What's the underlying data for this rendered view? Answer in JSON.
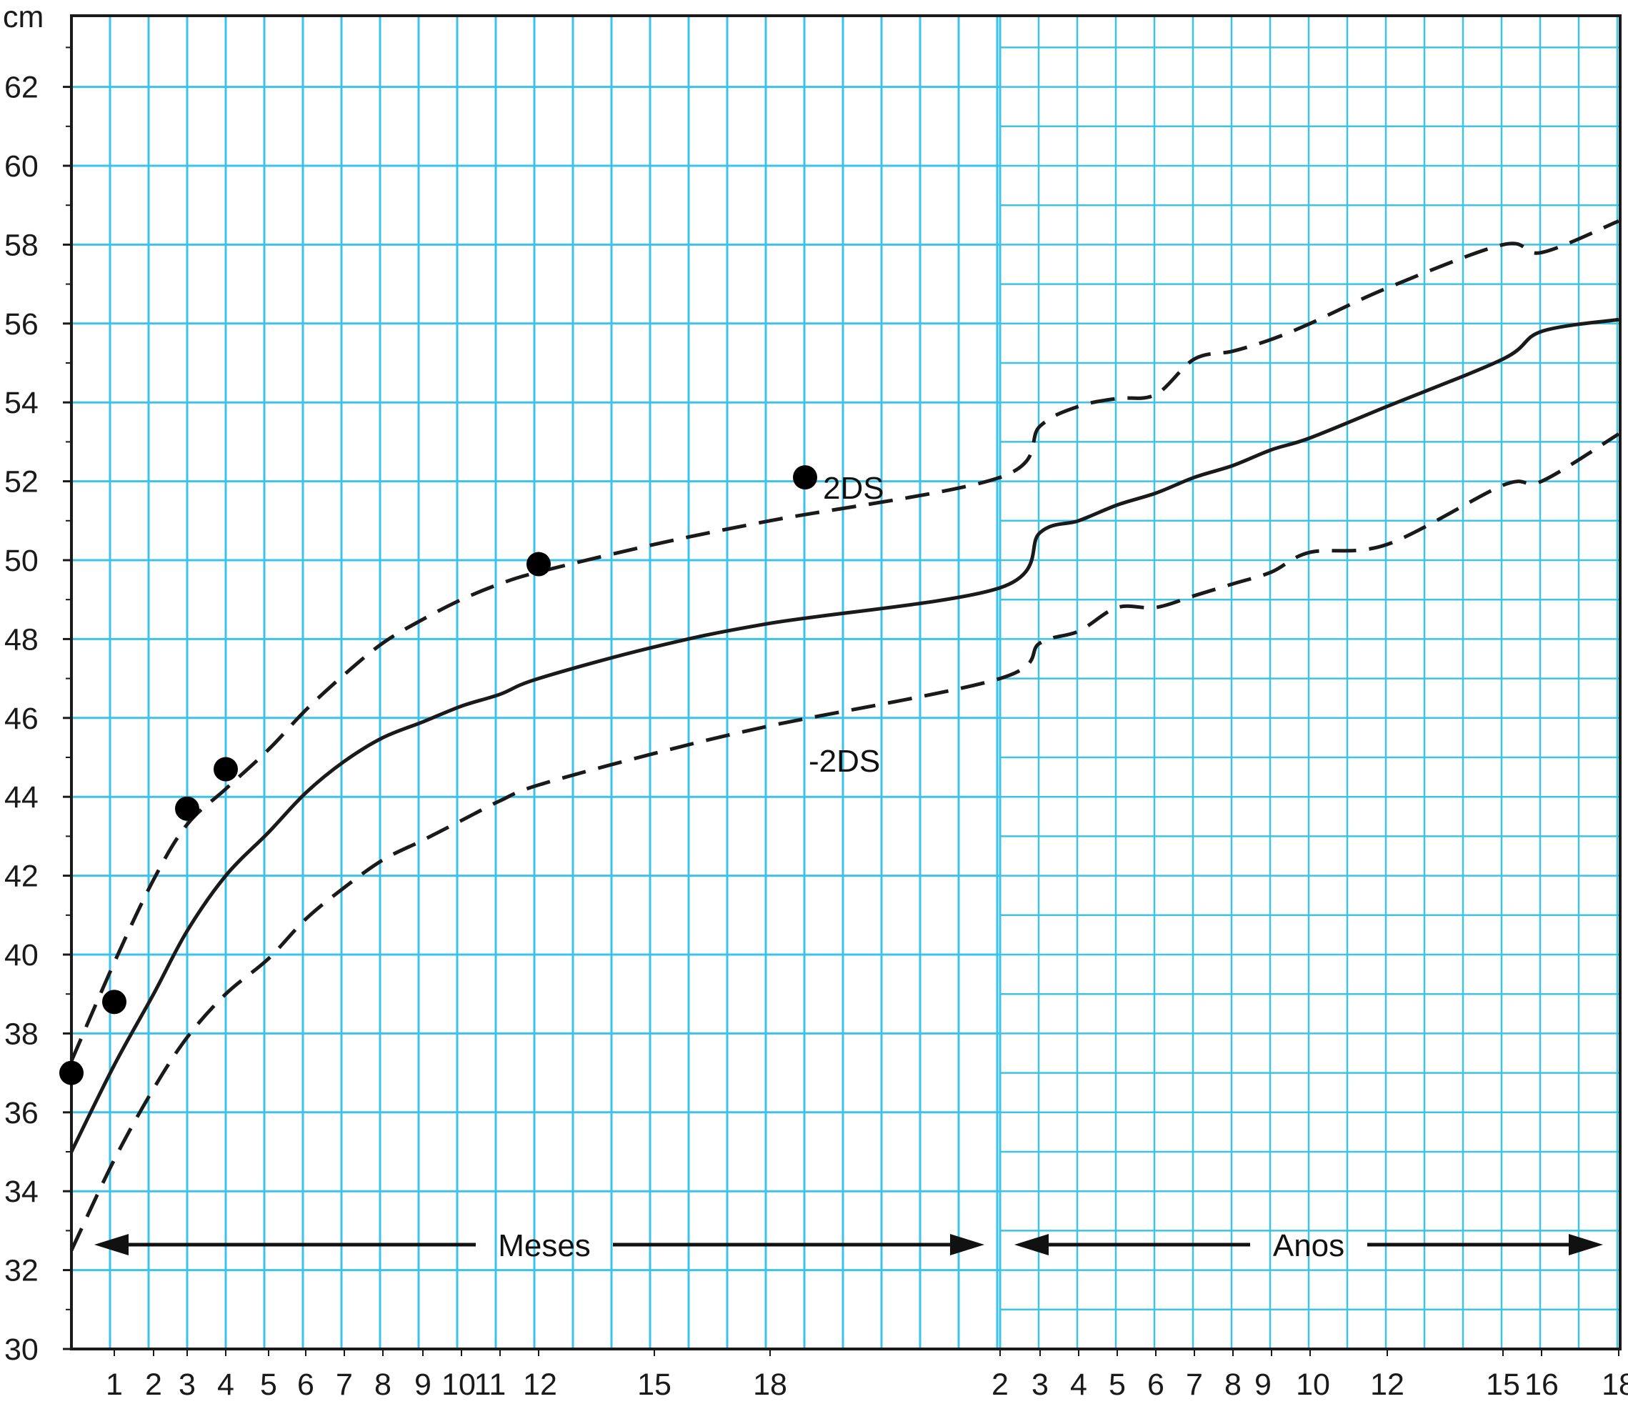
{
  "chart_data": {
    "type": "line",
    "ylabel": "cm",
    "ylim": [
      30,
      64
    ],
    "yticks": [
      30,
      32,
      34,
      36,
      38,
      40,
      42,
      44,
      46,
      48,
      50,
      52,
      54,
      56,
      58,
      60,
      62
    ],
    "x_sections": [
      {
        "label": "Meses",
        "ticks": [
          "1",
          "2",
          "3",
          "4",
          "5",
          "6",
          "7",
          "8",
          "9",
          "10",
          "11",
          "12",
          "15",
          "18"
        ]
      },
      {
        "label": "Anos",
        "ticks": [
          "2",
          "3",
          "4",
          "5",
          "6",
          "7",
          "8",
          "9",
          "10",
          "12",
          "15",
          "16",
          "18"
        ]
      }
    ],
    "series": [
      {
        "name": "2DS",
        "style": "dashed",
        "points": [
          [
            "0m",
            37.3
          ],
          [
            "1m",
            39.8
          ],
          [
            "2m",
            41.9
          ],
          [
            "3m",
            43.3
          ],
          [
            "4m",
            44.2
          ],
          [
            "5m",
            45.2
          ],
          [
            "6m",
            46.2
          ],
          [
            "7m",
            47.1
          ],
          [
            "8m",
            47.9
          ],
          [
            "9m",
            48.5
          ],
          [
            "10m",
            49.0
          ],
          [
            "11m",
            49.4
          ],
          [
            "12m",
            49.7
          ],
          [
            "15m",
            50.4
          ],
          [
            "18m",
            51.0
          ],
          [
            "24m",
            52.1
          ],
          [
            "3a",
            53.4
          ],
          [
            "4a",
            53.9
          ],
          [
            "5a",
            54.1
          ],
          [
            "6a",
            54.2
          ],
          [
            "7a",
            55.1
          ],
          [
            "8a",
            55.3
          ],
          [
            "9a",
            55.6
          ],
          [
            "10a",
            56.0
          ],
          [
            "12a",
            56.9
          ],
          [
            "15a",
            58.0
          ],
          [
            "16a",
            57.8
          ],
          [
            "18a",
            58.6
          ]
        ]
      },
      {
        "name": "",
        "style": "solid",
        "points": [
          [
            "0m",
            35.0
          ],
          [
            "1m",
            37.2
          ],
          [
            "2m",
            39.0
          ],
          [
            "3m",
            40.6
          ],
          [
            "4m",
            42.0
          ],
          [
            "5m",
            43.1
          ],
          [
            "6m",
            44.1
          ],
          [
            "7m",
            44.9
          ],
          [
            "8m",
            45.5
          ],
          [
            "9m",
            45.9
          ],
          [
            "10m",
            46.3
          ],
          [
            "11m",
            46.6
          ],
          [
            "12m",
            47.0
          ],
          [
            "15m",
            47.8
          ],
          [
            "18m",
            48.4
          ],
          [
            "24m",
            49.3
          ],
          [
            "3a",
            50.7
          ],
          [
            "4a",
            51.0
          ],
          [
            "5a",
            51.4
          ],
          [
            "6a",
            51.7
          ],
          [
            "7a",
            52.1
          ],
          [
            "8a",
            52.4
          ],
          [
            "9a",
            52.8
          ],
          [
            "10a",
            53.1
          ],
          [
            "12a",
            53.9
          ],
          [
            "15a",
            55.1
          ],
          [
            "16a",
            55.8
          ],
          [
            "18a",
            56.1
          ]
        ]
      },
      {
        "name": "-2DS",
        "style": "dashed",
        "points": [
          [
            "0m",
            32.5
          ],
          [
            "1m",
            34.8
          ],
          [
            "2m",
            36.6
          ],
          [
            "3m",
            37.9
          ],
          [
            "4m",
            39.0
          ],
          [
            "5m",
            39.9
          ],
          [
            "6m",
            40.9
          ],
          [
            "7m",
            41.7
          ],
          [
            "8m",
            42.4
          ],
          [
            "9m",
            42.9
          ],
          [
            "10m",
            43.4
          ],
          [
            "11m",
            43.9
          ],
          [
            "12m",
            44.3
          ],
          [
            "15m",
            45.1
          ],
          [
            "18m",
            45.8
          ],
          [
            "24m",
            47.0
          ],
          [
            "3a",
            47.9
          ],
          [
            "4a",
            48.2
          ],
          [
            "5a",
            48.8
          ],
          [
            "6a",
            48.8
          ],
          [
            "7a",
            49.1
          ],
          [
            "8a",
            49.4
          ],
          [
            "9a",
            49.7
          ],
          [
            "10a",
            50.2
          ],
          [
            "12a",
            50.4
          ],
          [
            "15a",
            51.9
          ],
          [
            "16a",
            52.0
          ],
          [
            "18a",
            53.2
          ]
        ]
      }
    ],
    "measurements": [
      {
        "x": "0m",
        "y": 37.0
      },
      {
        "x": "1m",
        "y": 38.8
      },
      {
        "x": "3m",
        "y": 43.7
      },
      {
        "x": "4m",
        "y": 44.7
      },
      {
        "x": "12m",
        "y": 49.9
      },
      {
        "x": "19m",
        "y": 52.1
      }
    ],
    "grid": true,
    "colors": {
      "grid": "#3ec3e8",
      "line": "#1a1a1a",
      "marker": "#000000",
      "axis": "#1a1a1a"
    }
  }
}
